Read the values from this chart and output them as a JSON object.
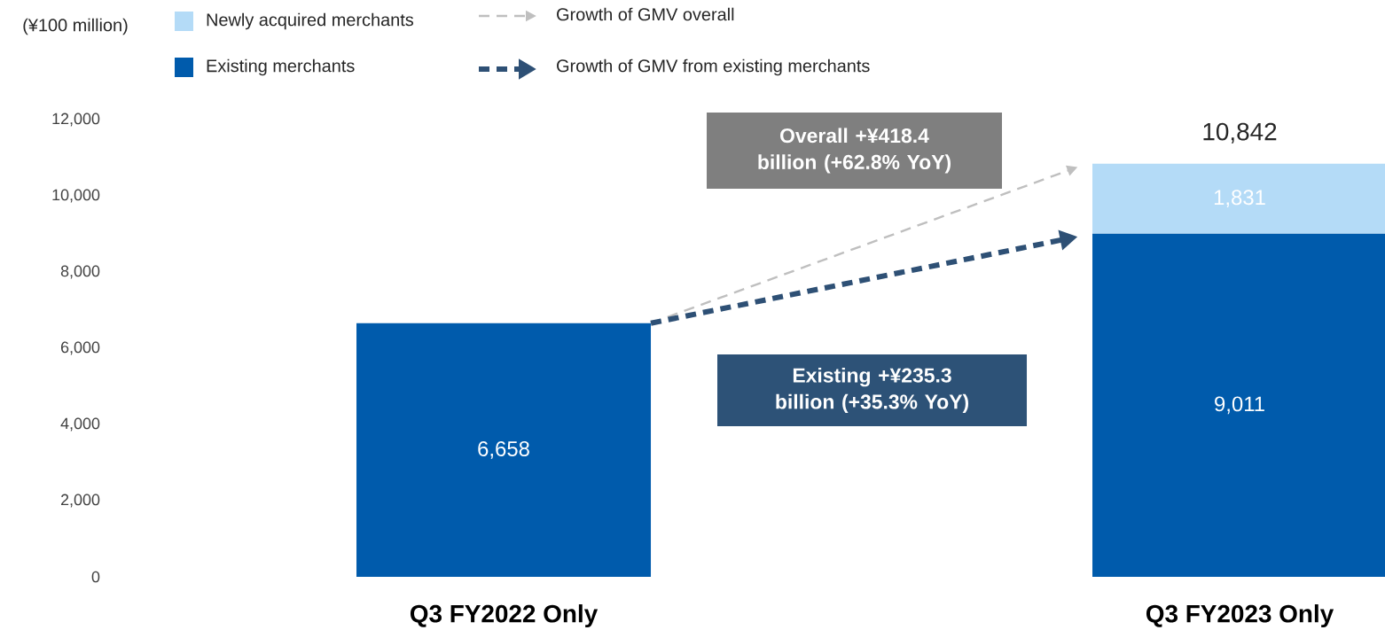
{
  "chart_data": {
    "type": "bar",
    "stacked": true,
    "ylabel": "(¥100 million)",
    "categories": [
      "Q3 FY2022 Only",
      "Q3 FY2023 Only"
    ],
    "series": [
      {
        "name": "Existing merchants",
        "color": "#005bac",
        "values": [
          6658,
          9011
        ],
        "value_labels": [
          "6,658",
          "9,011"
        ]
      },
      {
        "name": "Newly acquired merchants",
        "color": "#b4dbf7",
        "values": [
          null,
          1831
        ],
        "value_labels": [
          null,
          "1,831"
        ]
      }
    ],
    "totals": [
      null,
      "10,842"
    ],
    "ylim": [
      0,
      12000
    ],
    "yticks": [
      {
        "value": 0,
        "label": "0"
      },
      {
        "value": 2000,
        "label": "2,000"
      },
      {
        "value": 4000,
        "label": "4,000"
      },
      {
        "value": 6000,
        "label": "6,000"
      },
      {
        "value": 8000,
        "label": "8,000"
      },
      {
        "value": 10000,
        "label": "10,000"
      },
      {
        "value": 12000,
        "label": "12,000"
      }
    ],
    "legend": "top",
    "grid": false,
    "annotations": [
      "Overall +¥418.4 billion (+62.8% YoY)",
      "Existing +¥235.3 billion (+35.3% YoY)",
      "Growth of GMV overall",
      "Growth of GMV from existing merchants"
    ]
  }
}
